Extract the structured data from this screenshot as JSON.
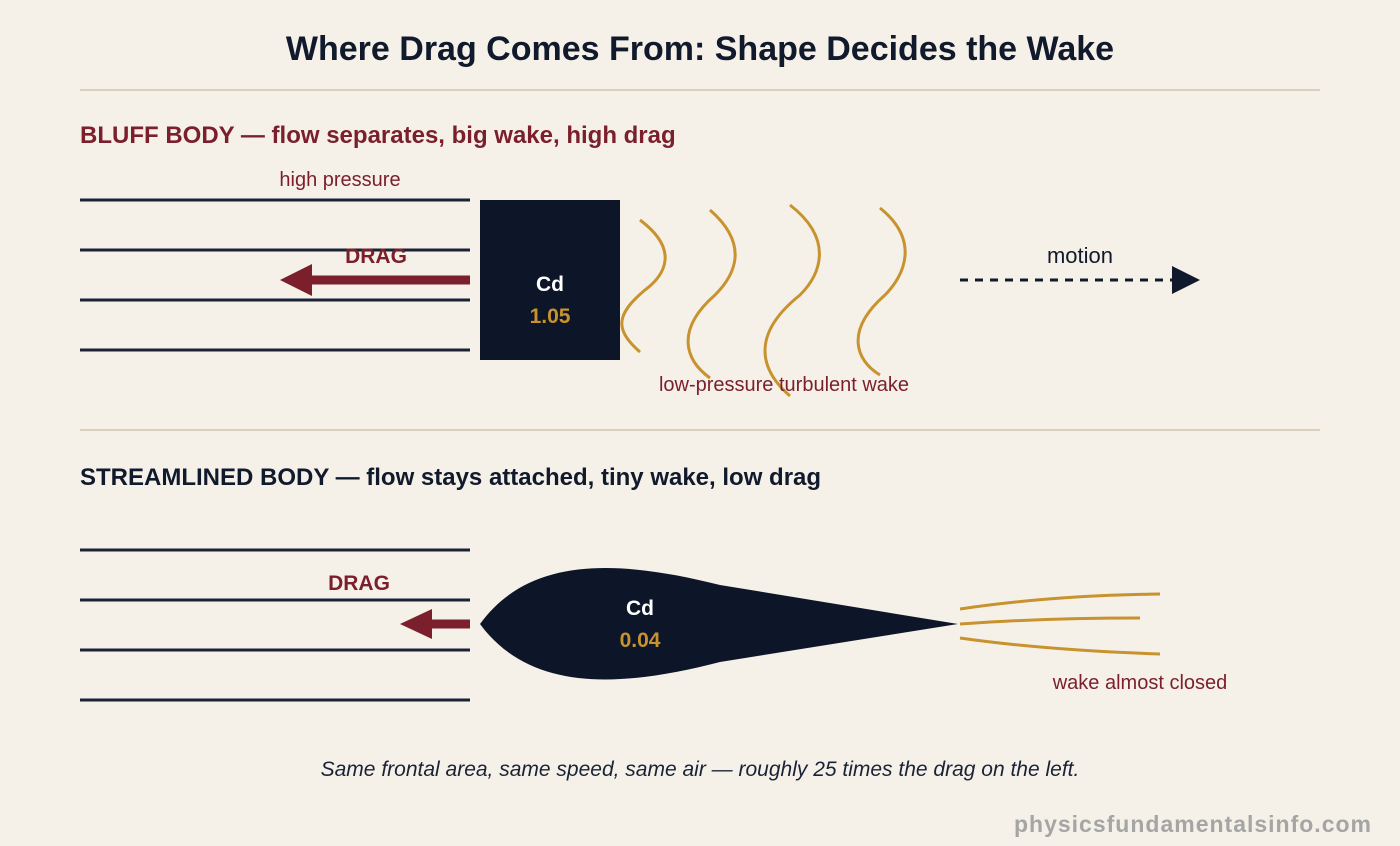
{
  "title": "Where Drag Comes From: Shape Decides the Wake",
  "bluff": {
    "heading": "BLUFF BODY — flow separates, big wake, high drag",
    "high_pressure_label": "high pressure",
    "drag_label": "DRAG",
    "cd_label": "Cd",
    "cd_value": "1.05",
    "wake_label": "low-pressure turbulent wake",
    "motion_label": "motion"
  },
  "streamlined": {
    "heading": "STREAMLINED BODY — flow stays attached, tiny wake, low drag",
    "drag_label": "DRAG",
    "cd_label": "Cd",
    "cd_value": "0.04",
    "wake_label": "wake almost closed"
  },
  "caption": "Same frontal area, same speed, same air — roughly 25 times the drag on the left.",
  "credit": "physicsfundamentalsinfo.com",
  "colors": {
    "background": "#f5f1e8",
    "navy": "#111a2c",
    "body": "#0d1628",
    "maroon": "#7a1f2b",
    "gold": "#c8922e",
    "divider": "#d8d0bd"
  }
}
